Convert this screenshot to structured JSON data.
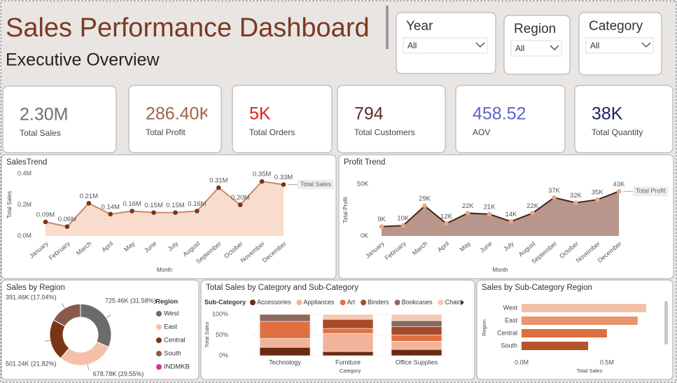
{
  "header": {
    "title": "Sales Performance Dashboard",
    "subtitle": "Executive Overview"
  },
  "filters": [
    {
      "label": "Year",
      "value": "All"
    },
    {
      "label": "Region",
      "value": "All"
    },
    {
      "label": "Category",
      "value": "All"
    }
  ],
  "kpis": [
    {
      "value": "2.30M",
      "label": "Total Sales",
      "color": "#707070"
    },
    {
      "value": "286.40K",
      "label": "Total Profit",
      "color": "#a0644a"
    },
    {
      "value": "5K",
      "label": "Total Orders",
      "color": "#e0201b"
    },
    {
      "value": "794",
      "label": "Total Customers",
      "color": "#5a3025"
    },
    {
      "value": "458.52",
      "label": "AOV",
      "color": "#5b63c9"
    },
    {
      "value": "38K",
      "label": "Total Quantity",
      "color": "#1a1f6b"
    }
  ],
  "chart_data": [
    {
      "type": "line",
      "title": "SalesTrend",
      "x_label": "Month",
      "y_label": "Total Sales",
      "categories": [
        "January",
        "February",
        "March",
        "April",
        "May",
        "June",
        "July",
        "August",
        "September",
        "October",
        "November",
        "December"
      ],
      "series": [
        {
          "name": "Total Sales",
          "color": "#c98a6c",
          "marker_color": "#7a3518",
          "area_color": "#f8dccd",
          "values": [
            0.09,
            0.06,
            0.21,
            0.14,
            0.16,
            0.15,
            0.15,
            0.16,
            0.31,
            0.2,
            0.35,
            0.33
          ],
          "value_labels": [
            "0.09M",
            "0.06M",
            "0.21M",
            "0.14M",
            "0.16M",
            "0.15M",
            "0.15M",
            "0.16M",
            "0.31M",
            "0.20M",
            "0.35M",
            "0.33M"
          ]
        }
      ],
      "ylim": [
        0,
        0.4
      ],
      "yticks": [
        {
          "value": 0,
          "label": "0.0M"
        },
        {
          "value": 0.2,
          "label": "0.2M"
        },
        {
          "value": 0.4,
          "label": "0.4M"
        }
      ]
    },
    {
      "type": "line",
      "title": "Profit Trend",
      "x_label": "Month",
      "y_label": "Total Profit",
      "categories": [
        "January",
        "February",
        "March",
        "April",
        "May",
        "June",
        "July",
        "August",
        "September",
        "October",
        "November",
        "December"
      ],
      "series": [
        {
          "name": "Total Profit",
          "color": "#4a2318",
          "marker_color": "#eaa582",
          "area_color": "#b8968c",
          "values": [
            9,
            10,
            29,
            12,
            22,
            21,
            14,
            22,
            37,
            32,
            35,
            43
          ],
          "value_labels": [
            "9K",
            "10K",
            "29K",
            "12K",
            "22K",
            "21K",
            "14K",
            "22K",
            "37K",
            "32K",
            "35K",
            "43K"
          ]
        }
      ],
      "ylim": [
        0,
        50
      ],
      "yticks": [
        {
          "value": 0,
          "label": "0K"
        },
        {
          "value": 50,
          "label": "50K"
        }
      ]
    },
    {
      "type": "donut",
      "title": "Sales by Region",
      "legend_title": "Region",
      "categories": [
        "West",
        "East",
        "Central",
        "South",
        "INDMKB"
      ],
      "values": [
        725.46,
        678.78,
        501.24,
        391.46,
        null
      ],
      "value_labels": [
        "725.46K (31.58%)",
        "678.78K (29.55%)",
        "501.24K (21.82%)",
        "391.46K (17.04%)",
        null
      ],
      "colors": [
        "#6b6b6b",
        "#f4c1a8",
        "#7a3518",
        "#8a5a4a",
        "#d6338a"
      ]
    },
    {
      "type": "bar",
      "stacked": true,
      "title": "Total Sales by Category and Sub-Category",
      "legend_title": "Sub-Category",
      "x_label": "Category",
      "y_label": "Total Sales",
      "categories": [
        "Technology",
        "Furniture",
        "Office Supplies"
      ],
      "series": [
        {
          "name": "Accessories",
          "color": "#6b2a14",
          "values": [
            20,
            10,
            15
          ]
        },
        {
          "name": "Appliances",
          "color": "#f1b49a",
          "values": [
            22,
            44,
            20
          ]
        },
        {
          "name": "Art",
          "color": "#e07040",
          "values": [
            41,
            12,
            15
          ]
        },
        {
          "name": "Binders",
          "color": "#a84a28",
          "values": [
            0,
            22,
            20
          ]
        },
        {
          "name": "Bookcases",
          "color": "#8c6a5e",
          "values": [
            17,
            0,
            15
          ]
        },
        {
          "name": "Chairs",
          "color": "#f6c8b4",
          "values": [
            0,
            12,
            15
          ]
        }
      ],
      "ylim": [
        0,
        100
      ],
      "yticks": [
        {
          "value": 0,
          "label": "0%"
        },
        {
          "value": 50,
          "label": "50%"
        },
        {
          "value": 100,
          "label": "100%"
        }
      ]
    },
    {
      "type": "bar",
      "horizontal": true,
      "title": "Sales by Sub-Category Region",
      "x_label": "Total Sales",
      "y_label": "Region",
      "categories": [
        "West",
        "East",
        "Central",
        "South"
      ],
      "values": [
        0.73,
        0.68,
        0.5,
        0.39
      ],
      "colors": [
        "#f4c1a8",
        "#e8956e",
        "#d8703f",
        "#b5532b"
      ],
      "xlim": [
        0,
        0.8
      ],
      "xticks": [
        {
          "value": 0,
          "label": "0.0M"
        },
        {
          "value": 0.5,
          "label": "0.5M"
        }
      ]
    }
  ]
}
